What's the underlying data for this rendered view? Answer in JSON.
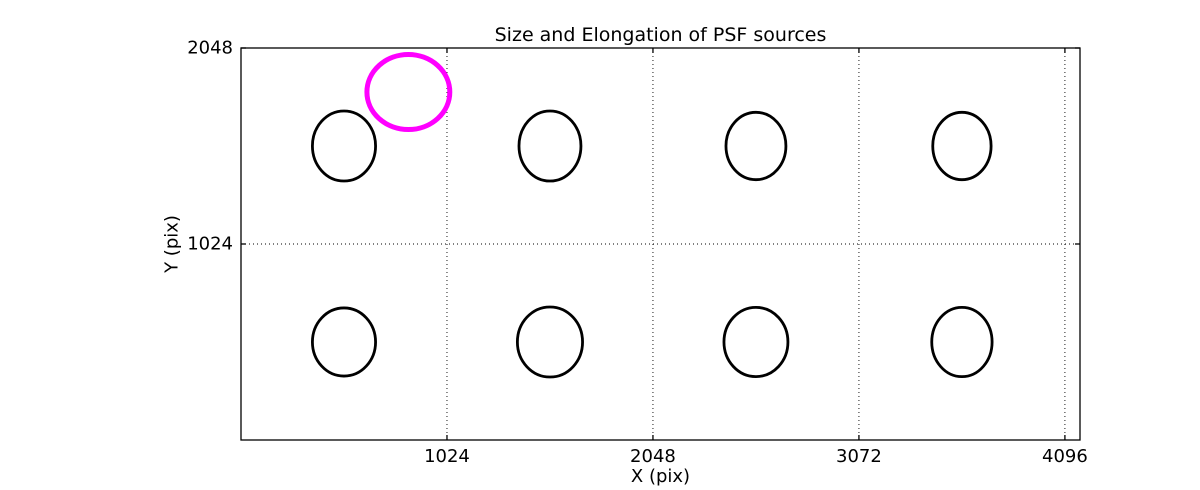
{
  "colors": {
    "foreground": "#000000",
    "background": "#ffffff",
    "ellipse_stroke": "#000000",
    "reference_stroke": "#ff00ff"
  },
  "chart_data": {
    "type": "scatter",
    "title": "Size and Elongation of PSF sources",
    "xlabel": "X (pix)",
    "ylabel": "Y (pix)",
    "xlim": [
      0,
      4171
    ],
    "ylim": [
      0,
      2048
    ],
    "xticks": [
      1024,
      2048,
      3072,
      4096
    ],
    "yticks": [
      1024,
      2048
    ],
    "grid": "dotted",
    "legend_position": "none",
    "psf_ellipses": [
      {
        "x": 512,
        "y": 1536,
        "rx": 157,
        "ry": 183
      },
      {
        "x": 1536,
        "y": 1536,
        "rx": 154,
        "ry": 183
      },
      {
        "x": 2560,
        "y": 1536,
        "rx": 149,
        "ry": 176
      },
      {
        "x": 3584,
        "y": 1536,
        "rx": 145,
        "ry": 176
      },
      {
        "x": 512,
        "y": 512,
        "rx": 157,
        "ry": 178
      },
      {
        "x": 1536,
        "y": 512,
        "rx": 162,
        "ry": 183
      },
      {
        "x": 2560,
        "y": 512,
        "rx": 159,
        "ry": 181
      },
      {
        "x": 3584,
        "y": 512,
        "rx": 150,
        "ry": 181
      }
    ],
    "reference_ellipse": {
      "x": 832,
      "y": 1818,
      "rx": 206,
      "ry": 196
    }
  }
}
